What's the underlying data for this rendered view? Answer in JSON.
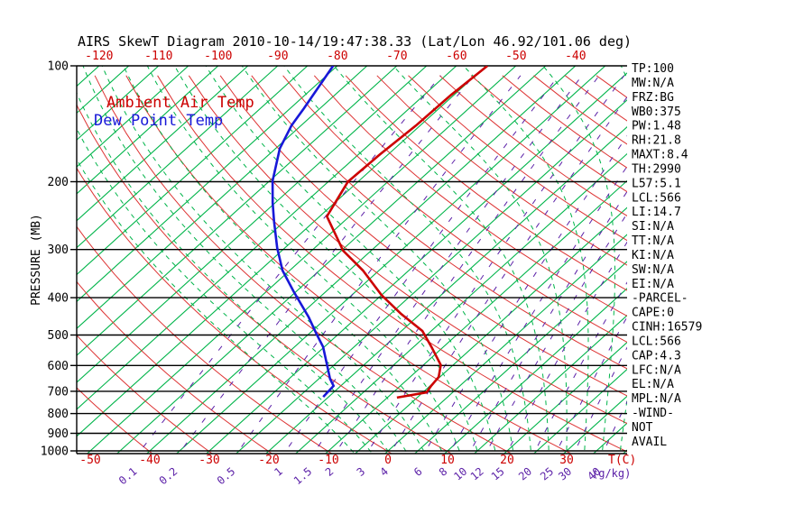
{
  "title": "AIRS SkewT Diagram 2010-10-14/19:47:38.33 (Lat/Lon 46.92/101.06 deg)",
  "legend": {
    "temp": "Ambient Air Temp",
    "dew": "Dew Point Temp"
  },
  "y_axis": {
    "label": "PRESSURE (MB)",
    "ticks": [
      100,
      200,
      300,
      400,
      500,
      600,
      700,
      800,
      900,
      1000
    ]
  },
  "x_axis_top": {
    "labels": [
      -120,
      -110,
      -100,
      -90,
      -80,
      -70,
      -60,
      -50,
      -40
    ]
  },
  "x_axis_bottom": {
    "labels": [
      -50,
      -40,
      -30,
      -20,
      -10,
      0,
      10,
      20,
      30
    ],
    "unit": "T(C)"
  },
  "mixing_axis": {
    "labels": [
      0.1,
      0.2,
      0.5,
      1,
      1.5,
      2,
      3,
      4,
      6,
      8,
      10,
      12,
      15,
      20,
      25,
      30,
      40
    ],
    "unit": "(g/kg)"
  },
  "side_panel": [
    "TP:100",
    "MW:N/A",
    "FRZ:BG",
    "WB0:375",
    "PW:1.48",
    "RH:21.8",
    "MAXT:8.4",
    "TH:2990",
    "L57:5.1",
    "LCL:566",
    "LI:14.7",
    "SI:N/A",
    "TT:N/A",
    "KI:N/A",
    "SW:N/A",
    "EI:N/A",
    "-PARCEL-",
    "CAPE:0",
    "CINH:16579",
    "LCL:566",
    "CAP:4.3",
    "LFC:N/A",
    "EL:N/A",
    "MPL:N/A",
    "-WIND-",
    "NOT",
    "AVAIL"
  ],
  "colors": {
    "temperature_curve": "#cc0000",
    "dewpoint_curve": "#1818d8",
    "isotherm": "#00b44a",
    "dry_adiabat": "#dd3333",
    "moist_adiabat": "#00b44a",
    "mixing_ratio": "#5c21a8",
    "grid": "#000000"
  },
  "chart_data": {
    "type": "line",
    "variant": "skewt-logp",
    "title": "AIRS SkewT Diagram 2010-10-14/19:47:38.33 (Lat/Lon 46.92/101.06 deg)",
    "xlabel": "T(C)",
    "ylabel": "PRESSURE (MB)",
    "pressure_levels_mb": [
      100,
      200,
      300,
      400,
      500,
      600,
      700,
      800,
      900,
      1000
    ],
    "isotherm_range_c": [
      -130,
      45
    ],
    "isotherm_step_c": 5,
    "dry_adiabat_theta_k": {
      "min": 233,
      "max": 523,
      "step": 10
    },
    "moist_adiabat_thetaw_c": {
      "min": -6,
      "max": 57,
      "step": 3
    },
    "mixing_ratio_g_kg": [
      0.1,
      0.2,
      0.5,
      1,
      1.5,
      2,
      3,
      4,
      6,
      8,
      10,
      12,
      15,
      20,
      25,
      30,
      40
    ],
    "series": [
      {
        "name": "Ambient Air Temp",
        "points_p_t": [
          [
            100,
            -54.8
          ],
          [
            119,
            -55.5
          ],
          [
            143,
            -55.7
          ],
          [
            170,
            -56.4
          ],
          [
            200,
            -56.7
          ],
          [
            246,
            -53.8
          ],
          [
            302,
            -44.7
          ],
          [
            340,
            -37.7
          ],
          [
            394,
            -30.0
          ],
          [
            441,
            -23.2
          ],
          [
            488,
            -16.5
          ],
          [
            537,
            -12.0
          ],
          [
            598,
            -7.1
          ],
          [
            643,
            -5.2
          ],
          [
            679,
            -4.8
          ],
          [
            705,
            -4.4
          ],
          [
            727,
            -8.4
          ]
        ]
      },
      {
        "name": "Dew Point Temp",
        "points_p_t": [
          [
            100,
            -80.7
          ],
          [
            129,
            -77.7
          ],
          [
            143,
            -76.6
          ],
          [
            164,
            -74.3
          ],
          [
            199,
            -69.5
          ],
          [
            227,
            -65.4
          ],
          [
            253,
            -61.8
          ],
          [
            297,
            -56.3
          ],
          [
            340,
            -51.2
          ],
          [
            385,
            -45.5
          ],
          [
            450,
            -38.1
          ],
          [
            495,
            -33.9
          ],
          [
            537,
            -30.2
          ],
          [
            650,
            -23.1
          ],
          [
            678,
            -21.2
          ],
          [
            724,
            -20.9
          ]
        ]
      }
    ]
  }
}
